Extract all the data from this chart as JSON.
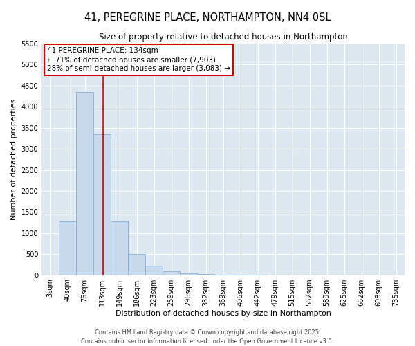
{
  "title": "41, PEREGRINE PLACE, NORTHAMPTON, NN4 0SL",
  "subtitle": "Size of property relative to detached houses in Northampton",
  "xlabel": "Distribution of detached houses by size in Northampton",
  "ylabel": "Number of detached properties",
  "categories": [
    "3sqm",
    "40sqm",
    "76sqm",
    "113sqm",
    "149sqm",
    "186sqm",
    "223sqm",
    "259sqm",
    "296sqm",
    "332sqm",
    "369sqm",
    "406sqm",
    "442sqm",
    "479sqm",
    "515sqm",
    "552sqm",
    "589sqm",
    "625sqm",
    "662sqm",
    "698sqm",
    "735sqm"
  ],
  "values": [
    0,
    1270,
    4350,
    3350,
    1280,
    500,
    220,
    95,
    45,
    18,
    8,
    4,
    2,
    1,
    0,
    0,
    0,
    0,
    0,
    0,
    0
  ],
  "bar_color": "#c8d9ec",
  "bar_edge_color": "#8ab0d0",
  "plot_bg_color": "#dde8f0",
  "fig_bg_color": "#ffffff",
  "grid_color": "#ffffff",
  "ylim": [
    0,
    5500
  ],
  "yticks": [
    0,
    500,
    1000,
    1500,
    2000,
    2500,
    3000,
    3500,
    4000,
    4500,
    5000,
    5500
  ],
  "vline_color": "#cc0000",
  "vline_x": 134,
  "property_label": "41 PEREGRINE PLACE: 134sqm",
  "annotation_line1": "← 71% of detached houses are smaller (7,903)",
  "annotation_line2": "28% of semi-detached houses are larger (3,083) →",
  "annotation_box_edge": "#cc0000",
  "footer_line1": "Contains HM Land Registry data © Crown copyright and database right 2025.",
  "footer_line2": "Contains public sector information licensed under the Open Government Licence v3.0.",
  "title_fontsize": 10.5,
  "subtitle_fontsize": 8.5,
  "axis_label_fontsize": 8,
  "tick_fontsize": 7,
  "annotation_fontsize": 7.5,
  "footer_fontsize": 6,
  "bin_width": 37
}
